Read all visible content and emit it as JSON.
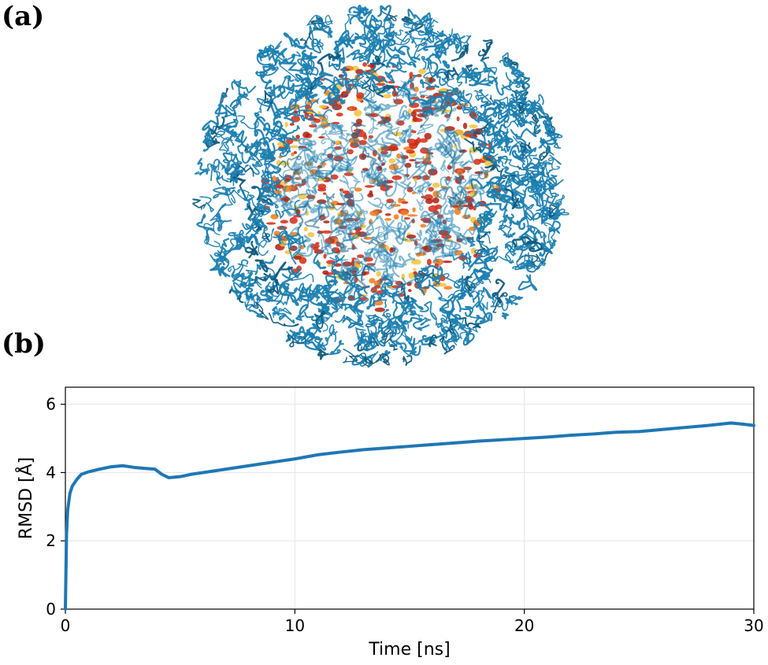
{
  "panels": {
    "a": {
      "label": "(a)"
    },
    "b": {
      "label": "(b)"
    }
  },
  "image": {
    "description_icon": "protein-capsid-ribbon-render",
    "colors": {
      "ribbon": "#1b7fb0",
      "core_red": "#d42a12",
      "core_orange": "#f07a18",
      "core_yellow": "#f2c23a"
    }
  },
  "chart_data": {
    "type": "line",
    "title": "",
    "xlabel": "Time [ns]",
    "ylabel": "RMSD [Å]",
    "xlim": [
      0,
      30
    ],
    "ylim": [
      0,
      6.5
    ],
    "xticks": [
      0,
      10,
      20,
      30
    ],
    "yticks": [
      0,
      2,
      4,
      6
    ],
    "grid": true,
    "legend": "none",
    "series": [
      {
        "color": "#1f77b4",
        "x": [
          0,
          0.05,
          0.1,
          0.2,
          0.3,
          0.5,
          0.7,
          1.0,
          1.5,
          2.0,
          2.5,
          3.0,
          3.5,
          3.9,
          4.2,
          4.5,
          5.0,
          5.5,
          6.0,
          7.0,
          8.0,
          9.0,
          10.0,
          11.0,
          12.0,
          13.0,
          14.0,
          15.0,
          16.0,
          17.0,
          18.0,
          19.0,
          20.0,
          21.0,
          22.0,
          23.0,
          24.0,
          25.0,
          26.0,
          27.0,
          28.0,
          29.0,
          29.5,
          30.0
        ],
        "y": [
          0.0,
          2.2,
          2.9,
          3.4,
          3.6,
          3.8,
          3.95,
          4.02,
          4.1,
          4.17,
          4.2,
          4.15,
          4.12,
          4.1,
          3.95,
          3.85,
          3.88,
          3.95,
          4.0,
          4.1,
          4.2,
          4.3,
          4.4,
          4.52,
          4.6,
          4.67,
          4.72,
          4.77,
          4.82,
          4.87,
          4.92,
          4.96,
          5.0,
          5.04,
          5.09,
          5.13,
          5.18,
          5.2,
          5.26,
          5.32,
          5.38,
          5.45,
          5.42,
          5.38
        ]
      }
    ]
  }
}
